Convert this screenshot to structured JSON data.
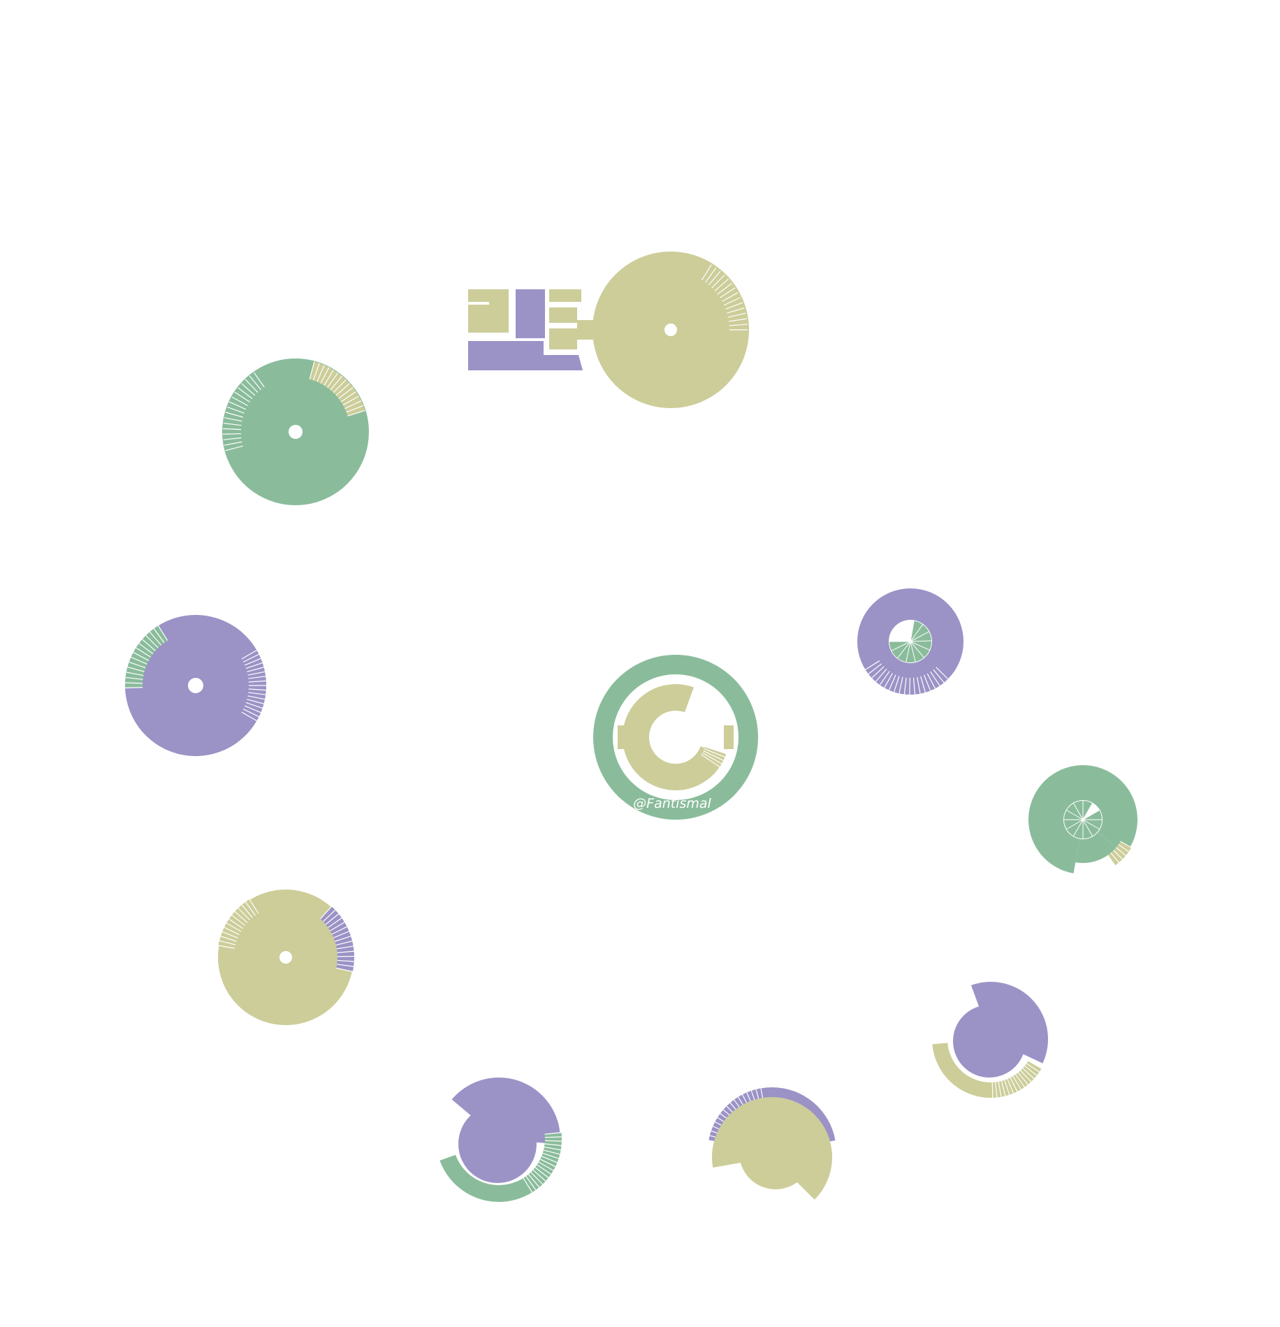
{
  "watermark": "@Fantismal",
  "colors": {
    "purple": "#9b93c6",
    "green": "#8abc9b",
    "khaki": "#cdcd9a",
    "background": "#ffffff",
    "line": "#ffffff"
  }
}
